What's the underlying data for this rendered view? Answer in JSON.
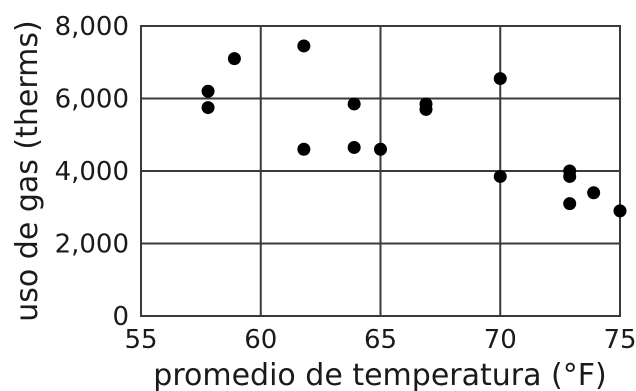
{
  "chart_data": {
    "type": "scatter",
    "xlabel": "promedio de temperatura (°F)",
    "ylabel": "uso de gas (therms)",
    "xlim": [
      55,
      75
    ],
    "ylim": [
      0,
      8000
    ],
    "x_ticks": [
      55,
      60,
      65,
      70,
      75
    ],
    "y_ticks": [
      0,
      2000,
      4000,
      6000,
      8000
    ],
    "x_tick_labels": [
      "55",
      "60",
      "65",
      "70",
      "75"
    ],
    "y_tick_labels": [
      "0",
      "2,000",
      "4,000",
      "6,000",
      "8,000"
    ],
    "grid": true,
    "points": [
      {
        "x": 57.8,
        "y": 6200
      },
      {
        "x": 57.8,
        "y": 5750
      },
      {
        "x": 58.9,
        "y": 7100
      },
      {
        "x": 61.8,
        "y": 7450
      },
      {
        "x": 61.8,
        "y": 4600
      },
      {
        "x": 63.9,
        "y": 5850
      },
      {
        "x": 63.9,
        "y": 4650
      },
      {
        "x": 65.0,
        "y": 4600
      },
      {
        "x": 66.9,
        "y": 5850
      },
      {
        "x": 66.9,
        "y": 5700
      },
      {
        "x": 70.0,
        "y": 6550
      },
      {
        "x": 70.0,
        "y": 3850
      },
      {
        "x": 72.9,
        "y": 4000
      },
      {
        "x": 72.9,
        "y": 3850
      },
      {
        "x": 72.9,
        "y": 3100
      },
      {
        "x": 73.9,
        "y": 3400
      },
      {
        "x": 75.0,
        "y": 2900
      }
    ]
  }
}
